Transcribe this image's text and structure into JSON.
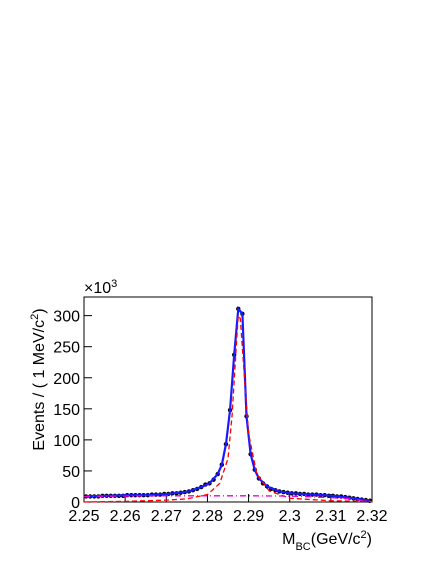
{
  "chart_data": {
    "type": "scatter",
    "xlim": [
      2.25,
      2.32
    ],
    "xticks": [
      2.25,
      2.26,
      2.27,
      2.28,
      2.29,
      2.3,
      2.31,
      2.32
    ],
    "ylim": [
      0,
      330
    ],
    "yticks": [
      0,
      50,
      100,
      150,
      200,
      250,
      300
    ],
    "y_multiplier_parts": [
      {
        "text": "×10"
      },
      {
        "text": "3",
        "shift": "sup"
      }
    ],
    "y_label_parts": [
      {
        "text": "Events / ( 1 MeV/c"
      },
      {
        "text": "2",
        "shift": "sup"
      },
      {
        "text": ")"
      }
    ],
    "x_label_parts": [
      {
        "text": "M"
      },
      {
        "text": "BC",
        "shift": "sub"
      },
      {
        "text": "(GeV/c"
      },
      {
        "text": "2",
        "shift": "sup"
      },
      {
        "text": ")"
      }
    ],
    "series": [
      {
        "style": "markers",
        "color": "#000000",
        "x": [
          2.2505,
          2.2515,
          2.2525,
          2.2535,
          2.2545,
          2.2555,
          2.2565,
          2.2575,
          2.2585,
          2.2595,
          2.2605,
          2.2615,
          2.2625,
          2.2635,
          2.2645,
          2.2655,
          2.2665,
          2.2675,
          2.2685,
          2.2695,
          2.2705,
          2.2715,
          2.2725,
          2.2735,
          2.2745,
          2.2755,
          2.2765,
          2.2775,
          2.2785,
          2.2795,
          2.2805,
          2.2815,
          2.2825,
          2.2835,
          2.2845,
          2.2855,
          2.2865,
          2.2875,
          2.2885,
          2.2895,
          2.2905,
          2.2915,
          2.2925,
          2.2935,
          2.2945,
          2.2955,
          2.2965,
          2.2975,
          2.2985,
          2.2995,
          2.3005,
          2.3015,
          2.3025,
          2.3035,
          2.3045,
          2.3055,
          2.3065,
          2.3075,
          2.3085,
          2.3095,
          2.3105,
          2.3115,
          2.3125,
          2.3135,
          2.3145,
          2.3155,
          2.3165,
          2.3175,
          2.3185,
          2.3195
        ],
        "values": [
          9,
          9,
          9,
          9,
          10,
          10,
          10,
          10,
          10,
          10,
          11,
          11,
          11,
          11,
          11,
          11,
          12,
          12,
          12,
          13,
          13,
          14,
          14,
          15,
          16,
          17,
          19,
          21,
          24,
          28,
          30,
          36,
          45,
          60,
          93,
          148,
          237,
          311,
          303,
          138,
          77,
          52,
          38,
          30,
          25,
          21,
          19,
          17,
          16,
          15,
          14,
          14,
          13,
          13,
          12,
          12,
          12,
          11,
          11,
          10,
          10,
          9,
          9,
          8,
          7,
          6,
          5,
          4,
          3,
          2
        ]
      },
      {
        "style": "solid",
        "color": "#1a1aff",
        "x": [
          2.2505,
          2.2555,
          2.2605,
          2.2655,
          2.2705,
          2.2755,
          2.2785,
          2.2805,
          2.2825,
          2.2835,
          2.2845,
          2.2855,
          2.2865,
          2.2875,
          2.2885,
          2.2895,
          2.2905,
          2.2915,
          2.2925,
          2.2945,
          2.2975,
          2.3005,
          2.3055,
          2.3105,
          2.3155,
          2.3195
        ],
        "values": [
          9,
          10,
          11,
          11,
          13,
          17,
          24,
          30,
          45,
          60,
          93,
          148,
          237,
          311,
          303,
          138,
          77,
          52,
          38,
          25,
          17,
          14,
          12,
          10,
          6,
          2
        ]
      },
      {
        "style": "dashed",
        "color": "#ff0000",
        "x": [
          2.25,
          2.26,
          2.27,
          2.275,
          2.28,
          2.283,
          2.285,
          2.286,
          2.287,
          2.2875,
          2.288,
          2.289,
          2.29,
          2.292,
          2.295,
          2.3,
          2.31,
          2.32
        ],
        "values": [
          0,
          1,
          3,
          5,
          12,
          30,
          70,
          140,
          250,
          300,
          295,
          200,
          110,
          45,
          18,
          6,
          2,
          1
        ]
      },
      {
        "style": "dashdot",
        "color": "#e000e0",
        "x": [
          2.25,
          2.26,
          2.27,
          2.28,
          2.29,
          2.3,
          2.31,
          2.315,
          2.32
        ],
        "values": [
          9,
          9.5,
          10,
          10,
          10,
          9.5,
          7,
          5,
          0
        ]
      }
    ]
  }
}
